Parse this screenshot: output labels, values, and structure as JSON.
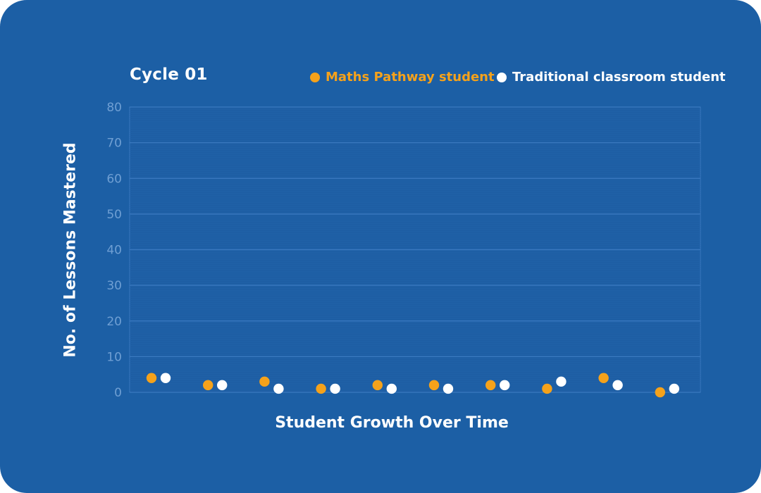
{
  "chart_data": {
    "type": "scatter",
    "title": "Cycle 01",
    "xlabel": "Student Growth Over Time",
    "ylabel": "No. of Lessons Mastered",
    "ylim": [
      0,
      80
    ],
    "y_ticks": [
      "0",
      "10",
      "20",
      "30",
      "40",
      "50",
      "60",
      "70",
      "80"
    ],
    "grid": true,
    "legend_position": "top-right",
    "series": [
      {
        "name": "Maths Pathway student",
        "color": "#f5a21b",
        "values": [
          4,
          2,
          3,
          1,
          2,
          2,
          2,
          1,
          4,
          0
        ]
      },
      {
        "name": "Traditional classroom student",
        "color": "#ffffff",
        "values": [
          4,
          2,
          1,
          1,
          1,
          1,
          2,
          3,
          2,
          1
        ]
      }
    ]
  },
  "colors": {
    "background": "#1c5fa5",
    "grid": "#3b7ac0",
    "tick_label": "#6f9fd3"
  }
}
